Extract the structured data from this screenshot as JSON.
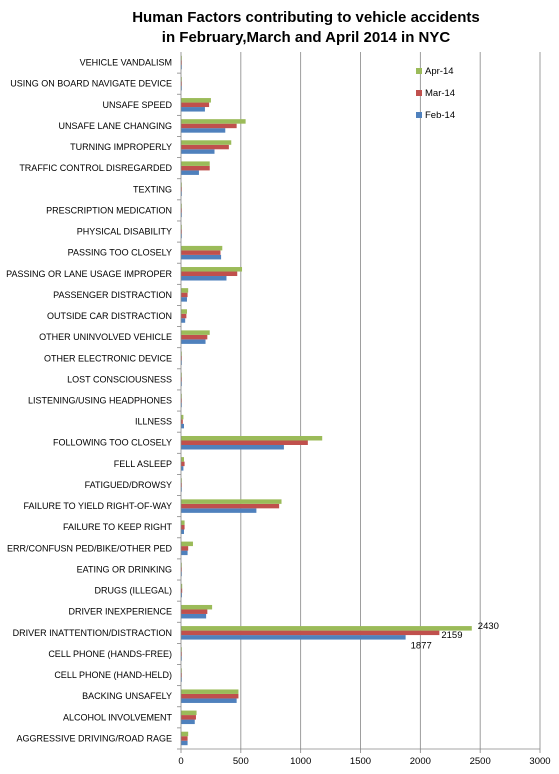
{
  "chart_data": {
    "type": "bar",
    "orientation": "horizontal",
    "title_lines": [
      "Human Factors contributing to vehicle accidents",
      "in February,March and April 2014 in NYC"
    ],
    "categories": [
      "AGGRESSIVE DRIVING/ROAD RAGE",
      "ALCOHOL INVOLVEMENT",
      "BACKING UNSAFELY",
      "CELL PHONE (HAND-HELD)",
      "CELL PHONE (HANDS-FREE)",
      "DRIVER INATTENTION/DISTRACTION",
      "DRIVER INEXPERIENCE",
      "DRUGS (ILLEGAL)",
      "EATING OR DRINKING",
      "ERR/CONFUSN  PED/BIKE/OTHER PED",
      "FAILURE TO KEEP RIGHT",
      "FAILURE TO YIELD RIGHT-OF-WAY",
      "FATIGUED/DROWSY",
      "FELL ASLEEP",
      "FOLLOWING TOO CLOSELY",
      "ILLNESS",
      "LISTENING/USING HEADPHONES",
      "LOST CONSCIOUSNESS",
      "OTHER ELECTRONIC DEVICE",
      "OTHER UNINVOLVED VEHICLE",
      "OUTSIDE CAR DISTRACTION",
      "PASSENGER DISTRACTION",
      "PASSING OR LANE USAGE IMPROPER",
      "PASSING TOO CLOSELY",
      "PHYSICAL DISABILITY",
      "PRESCRIPTION MEDICATION",
      "TEXTING",
      "TRAFFIC CONTROL DISREGARDED",
      "TURNING IMPROPERLY",
      "UNSAFE LANE CHANGING",
      "UNSAFE SPEED",
      "USING ON BOARD NAVIGATE DEVICE",
      "VEHICLE VANDALISM"
    ],
    "series": [
      {
        "name": "Feb-14",
        "color": "#4F81BD",
        "values": [
          55,
          115,
          465,
          5,
          3,
          1877,
          210,
          8,
          5,
          55,
          25,
          630,
          5,
          20,
          860,
          25,
          3,
          5,
          5,
          205,
          35,
          50,
          380,
          335,
          5,
          5,
          3,
          150,
          280,
          370,
          200,
          3,
          3
        ]
      },
      {
        "name": "Mar-14",
        "color": "#C0504D",
        "values": [
          55,
          125,
          480,
          5,
          3,
          2159,
          220,
          10,
          5,
          60,
          30,
          820,
          5,
          30,
          1060,
          15,
          3,
          5,
          5,
          220,
          45,
          55,
          470,
          330,
          5,
          5,
          3,
          240,
          400,
          465,
          235,
          3,
          3
        ]
      },
      {
        "name": "Apr-14",
        "color": "#9BBB59",
        "values": [
          60,
          130,
          480,
          5,
          3,
          2430,
          260,
          10,
          5,
          100,
          30,
          840,
          5,
          25,
          1180,
          20,
          3,
          5,
          5,
          240,
          50,
          60,
          510,
          345,
          5,
          5,
          3,
          240,
          420,
          540,
          250,
          3,
          3
        ]
      }
    ],
    "data_labels": [
      {
        "category": "DRIVER INATTENTION/DISTRACTION",
        "series": "Apr-14",
        "text": "2430"
      },
      {
        "category": "DRIVER INATTENTION/DISTRACTION",
        "series": "Mar-14",
        "text": "2159"
      },
      {
        "category": "DRIVER INATTENTION/DISTRACTION",
        "series": "Feb-14",
        "text": "1877"
      }
    ],
    "x_ticks": [
      "0",
      "500",
      "1000",
      "1500",
      "2000",
      "2500",
      "3000"
    ],
    "xlim": [
      0,
      3000
    ],
    "grid": "vertical major gridlines",
    "legend_position": "top-right",
    "legend_order": [
      "Apr-14",
      "Mar-14",
      "Feb-14"
    ]
  }
}
